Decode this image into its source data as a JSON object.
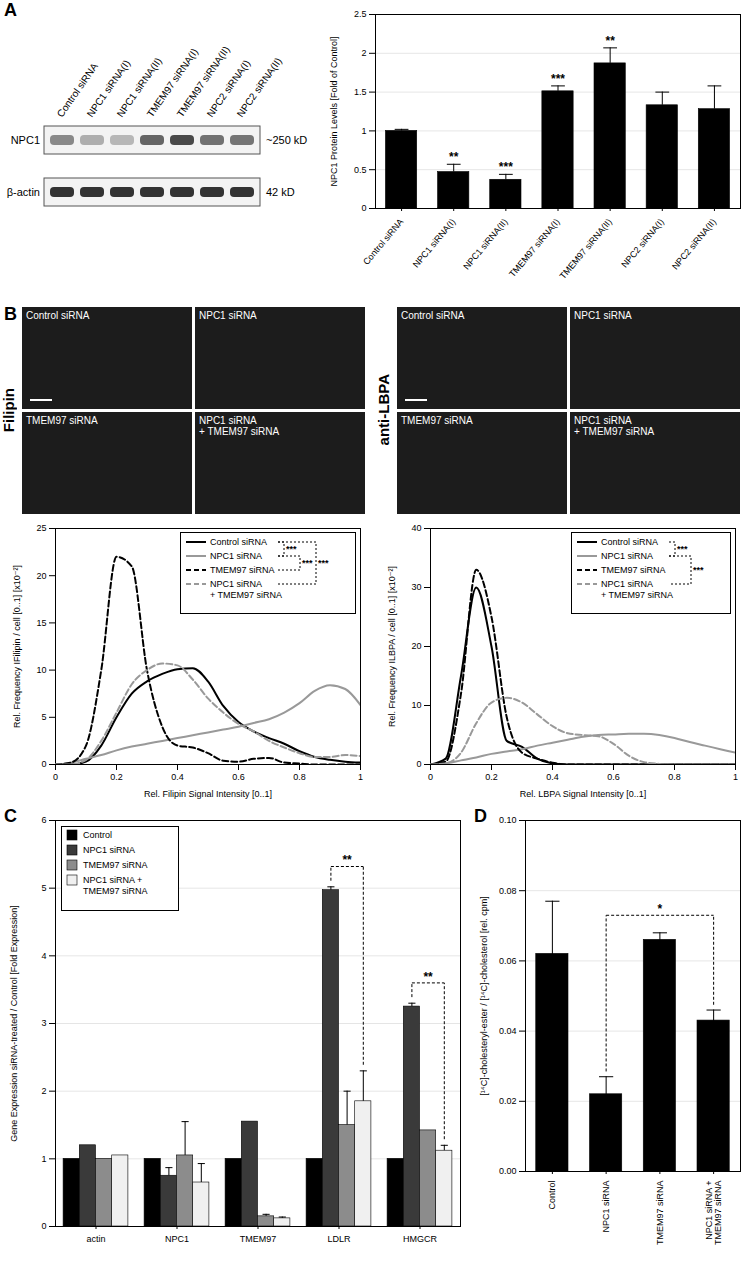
{
  "panel_letters": [
    "A",
    "B",
    "C",
    "D"
  ],
  "blot": {
    "lanes": [
      "Control siRNA",
      "NPC1 siRNA(I)",
      "NPC1 siRNA(II)",
      "TMEM97 siRNA(I)",
      "TMEM97 siRNA(II)",
      "NPC2 siRNA(I)",
      "NPC2 siRNA(II)"
    ],
    "rows": [
      {
        "label": "NPC1",
        "size": "~250 kD"
      },
      {
        "label": "β-actin",
        "size": "42 kD"
      }
    ]
  },
  "micrographs": [
    {
      "stain": "Filipin",
      "panels": [
        "Control siRNA",
        "NPC1 siRNA",
        "TMEM97 siRNA",
        "NPC1 siRNA\n+ TMEM97 siRNA"
      ]
    },
    {
      "stain": "anti-LBPA",
      "panels": [
        "Control siRNA",
        "NPC1 siRNA",
        "TMEM97 siRNA",
        "NPC1 siRNA\n+ TMEM97 siRNA"
      ]
    }
  ],
  "chart_data": [
    {
      "type": "bar",
      "categories": [
        "Control siRNA",
        "NPC1 siRNA(I)",
        "NPC1 siRNA(II)",
        "TMEM97 siRNA(I)",
        "TMEM97 siRNA(II)",
        "NPC2 siRNA(I)",
        "NPC2 siRNA(II)"
      ],
      "values": [
        1.0,
        0.47,
        0.37,
        1.51,
        1.87,
        1.33,
        1.28
      ],
      "errors": [
        0.02,
        0.1,
        0.07,
        0.07,
        0.2,
        0.17,
        0.3
      ],
      "significance": [
        null,
        "**",
        "***",
        "***",
        "**",
        null,
        null
      ],
      "color": "#000000",
      "ylabel": "NPC1 Protein Levels [Fold of Control]",
      "ylim": [
        0,
        2.5
      ],
      "yticks": [
        0,
        0.5,
        1,
        1.5,
        2,
        2.5
      ],
      "grid": true
    },
    {
      "type": "line",
      "x": [
        0,
        0.05,
        0.1,
        0.15,
        0.2,
        0.25,
        0.3,
        0.35,
        0.4,
        0.45,
        0.5,
        0.55,
        0.6,
        0.65,
        0.7,
        0.75,
        0.8,
        0.85,
        0.9,
        0.95,
        1
      ],
      "xlabel": "Rel. Filipin Signal Intensity [0..1]",
      "ylabel": "Rel. Frequency IFilipin / cell [0..1] [x10⁻²]",
      "xlim": [
        0,
        1
      ],
      "xticks": [
        0,
        0.2,
        0.4,
        0.6,
        0.8,
        1
      ],
      "ylim": [
        0,
        25
      ],
      "yticks": [
        0,
        5,
        10,
        15,
        20,
        25
      ],
      "legend": "top-right",
      "series": [
        {
          "name": "Control siRNA",
          "color": "#000000",
          "line_style": "solid",
          "values": [
            0,
            0,
            0.3,
            2,
            5,
            7.5,
            8.8,
            9.6,
            10.1,
            10.2,
            8.8,
            6.2,
            4.5,
            3.5,
            2.8,
            2.2,
            1.4,
            0.8,
            0.5,
            0.3,
            0.2
          ]
        },
        {
          "name": "NPC1 siRNA",
          "color": "#999999",
          "line_style": "solid",
          "values": [
            0,
            0.2,
            0.6,
            1,
            1.5,
            1.9,
            2.2,
            2.5,
            2.8,
            3.1,
            3.4,
            3.7,
            4,
            4.4,
            4.8,
            5.5,
            6.5,
            7.8,
            8.4,
            8,
            6.3
          ]
        },
        {
          "name": "TMEM97 siRNA",
          "color": "#000000",
          "line_style": "dashed",
          "values": [
            0,
            0.2,
            2,
            10,
            22,
            21,
            10,
            4,
            2,
            1.8,
            1.2,
            0.4,
            0.3,
            0.6,
            0.7,
            0.2,
            0.1,
            0,
            0,
            0,
            0
          ]
        },
        {
          "name": "NPC1 siRNA\n+ TMEM97 siRNA",
          "color": "#999999",
          "line_style": "dashed",
          "values": [
            0,
            0,
            0.5,
            2.5,
            5.5,
            8.5,
            10,
            10.7,
            10.5,
            9,
            7,
            5.5,
            4.3,
            3.5,
            2.5,
            1.8,
            1.2,
            0.8,
            0.8,
            1,
            0.9
          ]
        }
      ],
      "comparisons": [
        {
          "series": [
            0,
            1
          ],
          "label": "***"
        },
        {
          "series": [
            1,
            2
          ],
          "label": "***"
        },
        {
          "series": [
            0,
            3
          ],
          "label": "***"
        }
      ]
    },
    {
      "type": "line",
      "x": [
        0,
        0.05,
        0.1,
        0.15,
        0.2,
        0.25,
        0.3,
        0.35,
        0.4,
        0.45,
        0.5,
        0.55,
        0.6,
        0.65,
        0.7,
        0.75,
        0.8,
        0.85,
        0.9,
        0.95,
        1
      ],
      "xlabel": "Rel. LBPA Signal Intensity [0..1]",
      "ylabel": "Rel. Frequency ILBPA / cell [0..1] [x10⁻²]",
      "xlim": [
        0,
        1
      ],
      "xticks": [
        0,
        0.2,
        0.4,
        0.6,
        0.8,
        1
      ],
      "ylim": [
        0,
        40
      ],
      "yticks": [
        0,
        10,
        20,
        30,
        40
      ],
      "legend": "top-right",
      "series": [
        {
          "name": "Control siRNA",
          "color": "#000000",
          "line_style": "solid",
          "values": [
            0,
            1,
            15,
            30,
            20,
            4,
            3,
            1,
            0.2,
            0,
            0,
            0,
            0,
            0,
            0,
            0,
            0,
            0,
            0,
            0,
            0
          ]
        },
        {
          "name": "NPC1 siRNA",
          "color": "#999999",
          "line_style": "solid",
          "values": [
            0,
            0.2,
            0.7,
            1.2,
            1.8,
            2.2,
            2.6,
            3.2,
            3.7,
            4.2,
            4.7,
            5,
            5.1,
            5.2,
            5.2,
            5,
            4.5,
            3.8,
            3.2,
            2.6,
            2
          ]
        },
        {
          "name": "TMEM97 siRNA",
          "color": "#000000",
          "line_style": "dashed",
          "values": [
            0,
            0.5,
            12,
            33,
            25,
            8,
            2,
            1,
            0.3,
            0,
            0,
            0,
            0,
            0,
            0,
            0,
            0,
            0,
            0,
            0,
            0
          ]
        },
        {
          "name": "NPC1 siRNA\n+ TMEM97 siRNA",
          "color": "#999999",
          "line_style": "dashed",
          "values": [
            0,
            0.2,
            2,
            7,
            10.5,
            11.3,
            10.5,
            8.5,
            6.5,
            5.3,
            5,
            4.8,
            3.5,
            1.5,
            0.4,
            0.1,
            0,
            0,
            0,
            0,
            0
          ]
        }
      ],
      "comparisons": [
        {
          "series": [
            0,
            1
          ],
          "label": "***"
        },
        {
          "series": [
            1,
            3
          ],
          "label": "***"
        }
      ]
    },
    {
      "type": "bar",
      "categories": [
        "actin",
        "NPC1",
        "TMEM97",
        "LDLR",
        "HMGCR"
      ],
      "ylabel": "Gene Expression siRNA-treated / Control [Fold Expression]",
      "ylim": [
        0,
        6
      ],
      "yticks": [
        0,
        1,
        2,
        3,
        4,
        5,
        6
      ],
      "grid": true,
      "legend": "top-left",
      "series": [
        {
          "name": "Control",
          "color": "#000000",
          "values": [
            1,
            1,
            1,
            1,
            1
          ],
          "errors": [
            null,
            null,
            null,
            null,
            null
          ]
        },
        {
          "name": "NPC1 siRNA",
          "color": "#3a3a3a",
          "values": [
            1.2,
            0.75,
            1.55,
            4.97,
            3.25
          ],
          "errors": [
            null,
            0.12,
            null,
            0.05,
            0.05
          ]
        },
        {
          "name": "TMEM97 siRNA",
          "color": "#8c8c8c",
          "values": [
            1.0,
            1.05,
            0.15,
            1.5,
            1.42
          ],
          "errors": [
            null,
            0.5,
            0.03,
            0.5,
            null
          ]
        },
        {
          "name": "NPC1 siRNA +\nTMEM97 siRNA",
          "color": "#f0f0f0",
          "values": [
            1.05,
            0.65,
            0.12,
            1.85,
            1.12
          ],
          "errors": [
            null,
            0.28,
            0.02,
            0.45,
            0.08
          ]
        }
      ],
      "comparisons": [
        {
          "category": "LDLR",
          "series": [
            1,
            3
          ],
          "label": "**"
        },
        {
          "category": "HMGCR",
          "series": [
            1,
            3
          ],
          "label": "**"
        }
      ]
    },
    {
      "type": "bar",
      "categories": [
        "Control",
        "NPC1 siRNA",
        "TMEM97 siRNA",
        "NPC1 siRNA +\nTMEM97 siRNA"
      ],
      "values": [
        0.062,
        0.022,
        0.066,
        0.043
      ],
      "errors": [
        0.015,
        0.005,
        0.002,
        0.003
      ],
      "color": "#000000",
      "ylabel": "[¹⁴C]-cholesteryl-ester / [¹⁴C]-cholesterol [rel. cpm]",
      "ylim": [
        0,
        0.1
      ],
      "yticks": [
        {
          "value": 0,
          "label": "0.00"
        },
        {
          "value": 0.02,
          "label": "0.02"
        },
        {
          "value": 0.04,
          "label": "0.04"
        },
        {
          "value": 0.06,
          "label": "0.06"
        },
        {
          "value": 0.08,
          "label": "0.08"
        },
        {
          "value": 0.1,
          "label": "0.10"
        }
      ],
      "grid": true,
      "comparisons": [
        {
          "categories": [
            1,
            3
          ],
          "label": "*"
        }
      ]
    }
  ]
}
